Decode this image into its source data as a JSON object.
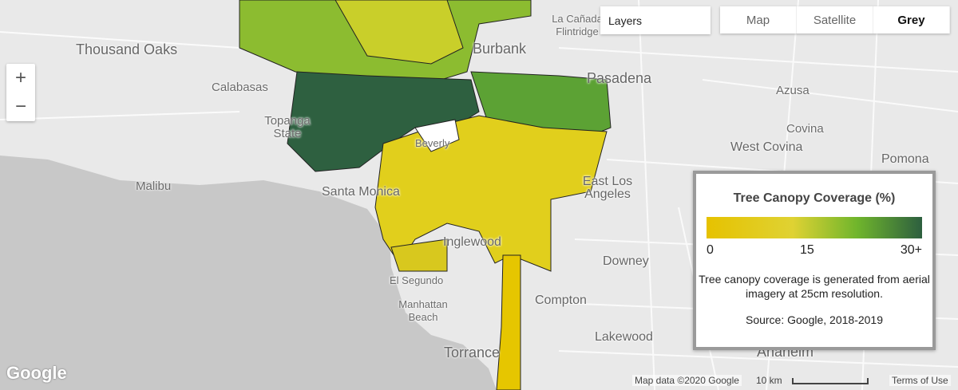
{
  "map_controls": {
    "zoom_in": "+",
    "zoom_out": "−",
    "layers_label": "Layers",
    "map_types": [
      {
        "label": "Map",
        "active": false
      },
      {
        "label": "Satellite",
        "active": false
      },
      {
        "label": "Grey",
        "active": true
      }
    ]
  },
  "place_labels": [
    "Thousand Oaks",
    "Calabasas",
    "Malibu",
    "Topanga State",
    "Burbank",
    "La Cañada Flintridge",
    "Pasadena",
    "Azusa",
    "Covina",
    "West Covina",
    "Pomona",
    "Santa Monica",
    "Beverly",
    "East Los Angeles",
    "Inglewood",
    "Downey",
    "El Segundo",
    "Manhattan Beach",
    "Compton",
    "Lakewood",
    "Torrance",
    "Anaheim"
  ],
  "legend": {
    "title": "Tree Canopy Coverage (%)",
    "ticks": [
      "0",
      "15",
      "30+"
    ],
    "colors": [
      "#e6c200",
      "#dfd233",
      "#6fb52c",
      "#2d5f3f"
    ],
    "description": "Tree canopy coverage is generated from aerial imagery at 25cm resolution.",
    "source": "Source: Google, 2018-2019"
  },
  "footer": {
    "logo": "Google",
    "map_data": "Map data ©2020 Google",
    "scale": "10 km",
    "terms": "Terms of Use"
  }
}
